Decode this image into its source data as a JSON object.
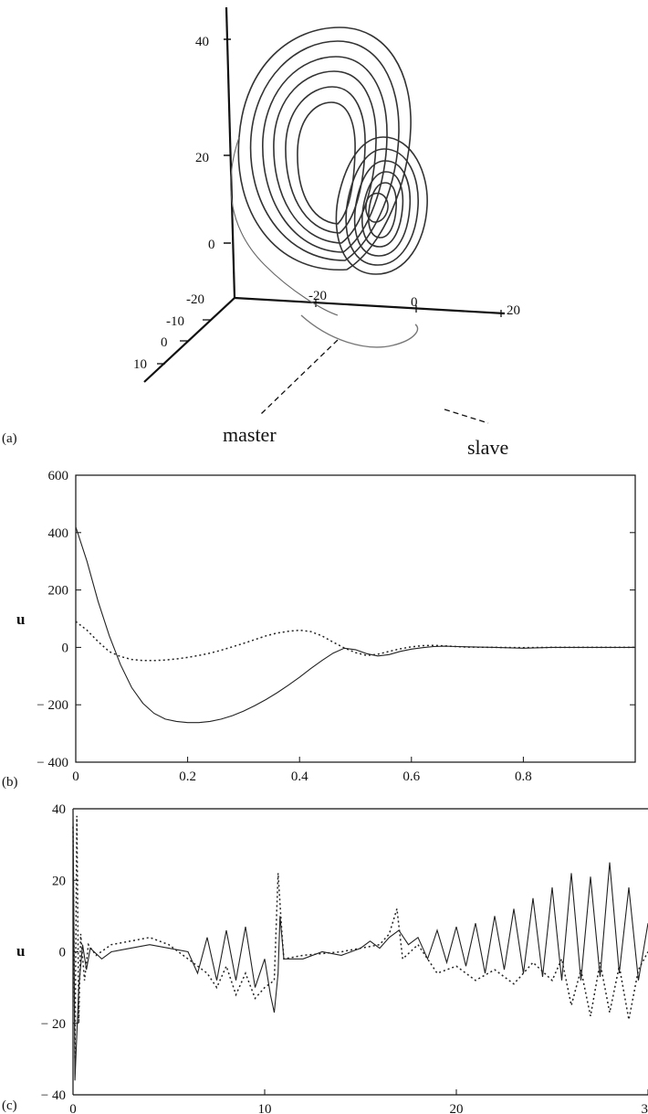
{
  "chart_data": [
    {
      "panel": "(a)",
      "type": "line",
      "subtype": "3d-trajectory",
      "axes": {
        "z_ticks": [
          "40",
          "20",
          "0",
          "-20"
        ],
        "x_ticks": [
          "-20",
          "0",
          "20"
        ],
        "y_ticks": [
          "-10",
          "0",
          "10"
        ]
      },
      "series": [
        {
          "name": "master",
          "style": "solid"
        },
        {
          "name": "slave",
          "style": "dashed"
        }
      ]
    },
    {
      "panel": "(b)",
      "type": "line",
      "ylabel": "u",
      "xlim": [
        0,
        1
      ],
      "ylim": [
        -400,
        600
      ],
      "xticks": [
        0,
        0.2,
        0.4,
        0.6,
        0.8
      ],
      "xtick_labels": [
        "0",
        "0.2",
        "0.4",
        "0.6",
        "0.8"
      ],
      "yticks": [
        600,
        400,
        200,
        0,
        -200,
        -400
      ],
      "ytick_labels": [
        "600",
        "400",
        "200",
        "0",
        "− 200",
        "− 400"
      ],
      "grid": false,
      "series": [
        {
          "style": "solid",
          "x": [
            0,
            0.02,
            0.04,
            0.06,
            0.08,
            0.1,
            0.12,
            0.14,
            0.16,
            0.18,
            0.2,
            0.22,
            0.24,
            0.26,
            0.28,
            0.3,
            0.32,
            0.34,
            0.36,
            0.38,
            0.4,
            0.42,
            0.44,
            0.46,
            0.48,
            0.5,
            0.52,
            0.54,
            0.56,
            0.58,
            0.6,
            0.62,
            0.64,
            0.66,
            0.68,
            0.7,
            0.75,
            0.8,
            0.85,
            0.9,
            0.95,
            1.0
          ],
          "y": [
            420,
            300,
            160,
            40,
            -60,
            -140,
            -195,
            -230,
            -250,
            -258,
            -262,
            -262,
            -258,
            -250,
            -238,
            -222,
            -203,
            -182,
            -158,
            -132,
            -104,
            -74,
            -46,
            -20,
            -3,
            -8,
            -22,
            -30,
            -25,
            -14,
            -6,
            -1,
            3,
            4,
            3,
            2,
            0,
            -3,
            0,
            0,
            0,
            0
          ]
        },
        {
          "style": "dotted",
          "x": [
            0,
            0.02,
            0.04,
            0.06,
            0.08,
            0.1,
            0.12,
            0.14,
            0.16,
            0.18,
            0.2,
            0.22,
            0.24,
            0.26,
            0.28,
            0.3,
            0.32,
            0.34,
            0.36,
            0.38,
            0.4,
            0.42,
            0.44,
            0.46,
            0.48,
            0.5,
            0.52,
            0.54,
            0.56,
            0.58,
            0.6,
            0.62,
            0.64,
            0.66,
            0.68,
            0.7,
            0.75,
            0.8,
            0.85,
            0.9,
            0.95,
            1.0
          ],
          "y": [
            90,
            60,
            20,
            -15,
            -32,
            -42,
            -46,
            -46,
            -44,
            -40,
            -35,
            -28,
            -20,
            -10,
            2,
            14,
            27,
            40,
            50,
            56,
            60,
            55,
            40,
            18,
            -2,
            -18,
            -28,
            -24,
            -14,
            -5,
            2,
            6,
            7,
            5,
            3,
            1,
            0,
            -1,
            0,
            0,
            0,
            0
          ]
        }
      ]
    },
    {
      "panel": "(c)",
      "type": "line",
      "ylabel": "u",
      "xlim": [
        0,
        30
      ],
      "ylim": [
        -40,
        40
      ],
      "xticks": [
        0,
        10,
        20,
        30
      ],
      "xtick_labels": [
        "0",
        "10",
        "20",
        "30"
      ],
      "yticks": [
        40,
        20,
        0,
        -20,
        -40
      ],
      "ytick_labels": [
        "40",
        "20",
        "0",
        "− 20",
        "− 40"
      ],
      "grid": false,
      "series": [
        {
          "style": "solid",
          "x": [
            0,
            0.1,
            0.3,
            0.5,
            0.7,
            0.9,
            1.5,
            2,
            3,
            4,
            5,
            6,
            6.5,
            7,
            7.5,
            8,
            8.5,
            9,
            9.5,
            10,
            10.3,
            10.5,
            10.7,
            10.8,
            11,
            12,
            13,
            14,
            15,
            15.5,
            16,
            16.5,
            17,
            17.5,
            18,
            18.5,
            19,
            19.5,
            20,
            20.5,
            21,
            21.5,
            22,
            22.5,
            23,
            23.5,
            24,
            24.5,
            25,
            25.5,
            26,
            26.5,
            27,
            27.5,
            28,
            28.5,
            29,
            29.5,
            30
          ],
          "y": [
            40,
            -36,
            -10,
            2,
            -5,
            1,
            -2,
            0,
            1,
            2,
            1,
            0,
            -6,
            4,
            -8,
            6,
            -8,
            7,
            -10,
            -2,
            -12,
            -17,
            -6,
            10,
            -2,
            -2,
            0,
            -1,
            1,
            3,
            1,
            4,
            6,
            2,
            4,
            -2,
            6,
            -3,
            7,
            -4,
            8,
            -6,
            10,
            -5,
            12,
            -6,
            15,
            -7,
            18,
            -8,
            22,
            -8,
            21,
            -7,
            25,
            -6,
            18,
            -8,
            8
          ]
        },
        {
          "style": "dotted",
          "x": [
            0,
            0.1,
            0.2,
            0.3,
            0.4,
            0.6,
            0.8,
            1.2,
            2,
            3,
            4,
            5,
            6,
            7,
            7.5,
            8,
            8.5,
            9,
            9.5,
            10,
            10.5,
            10.7,
            10.9,
            11,
            12,
            14,
            16,
            16.5,
            16.9,
            17.2,
            18,
            19,
            20,
            21,
            22,
            23,
            24,
            25,
            25.5,
            26,
            26.5,
            27,
            27.5,
            28,
            28.5,
            29,
            29.5,
            30
          ],
          "y": [
            35,
            -30,
            38,
            -20,
            5,
            -8,
            2,
            -1,
            2,
            3,
            4,
            2,
            -2,
            -6,
            -10,
            -4,
            -12,
            -6,
            -13,
            -10,
            -8,
            22,
            5,
            -2,
            -1,
            0,
            2,
            5,
            12,
            -2,
            2,
            -6,
            -4,
            -8,
            -5,
            -9,
            -3,
            -8,
            -2,
            -15,
            -5,
            -18,
            -3,
            -17,
            -4,
            -19,
            -5,
            0
          ]
        }
      ]
    }
  ],
  "labels": {
    "panel_a": "(a)",
    "panel_b": "(b)",
    "panel_c": "(c)",
    "master": "master",
    "slave": "slave"
  }
}
